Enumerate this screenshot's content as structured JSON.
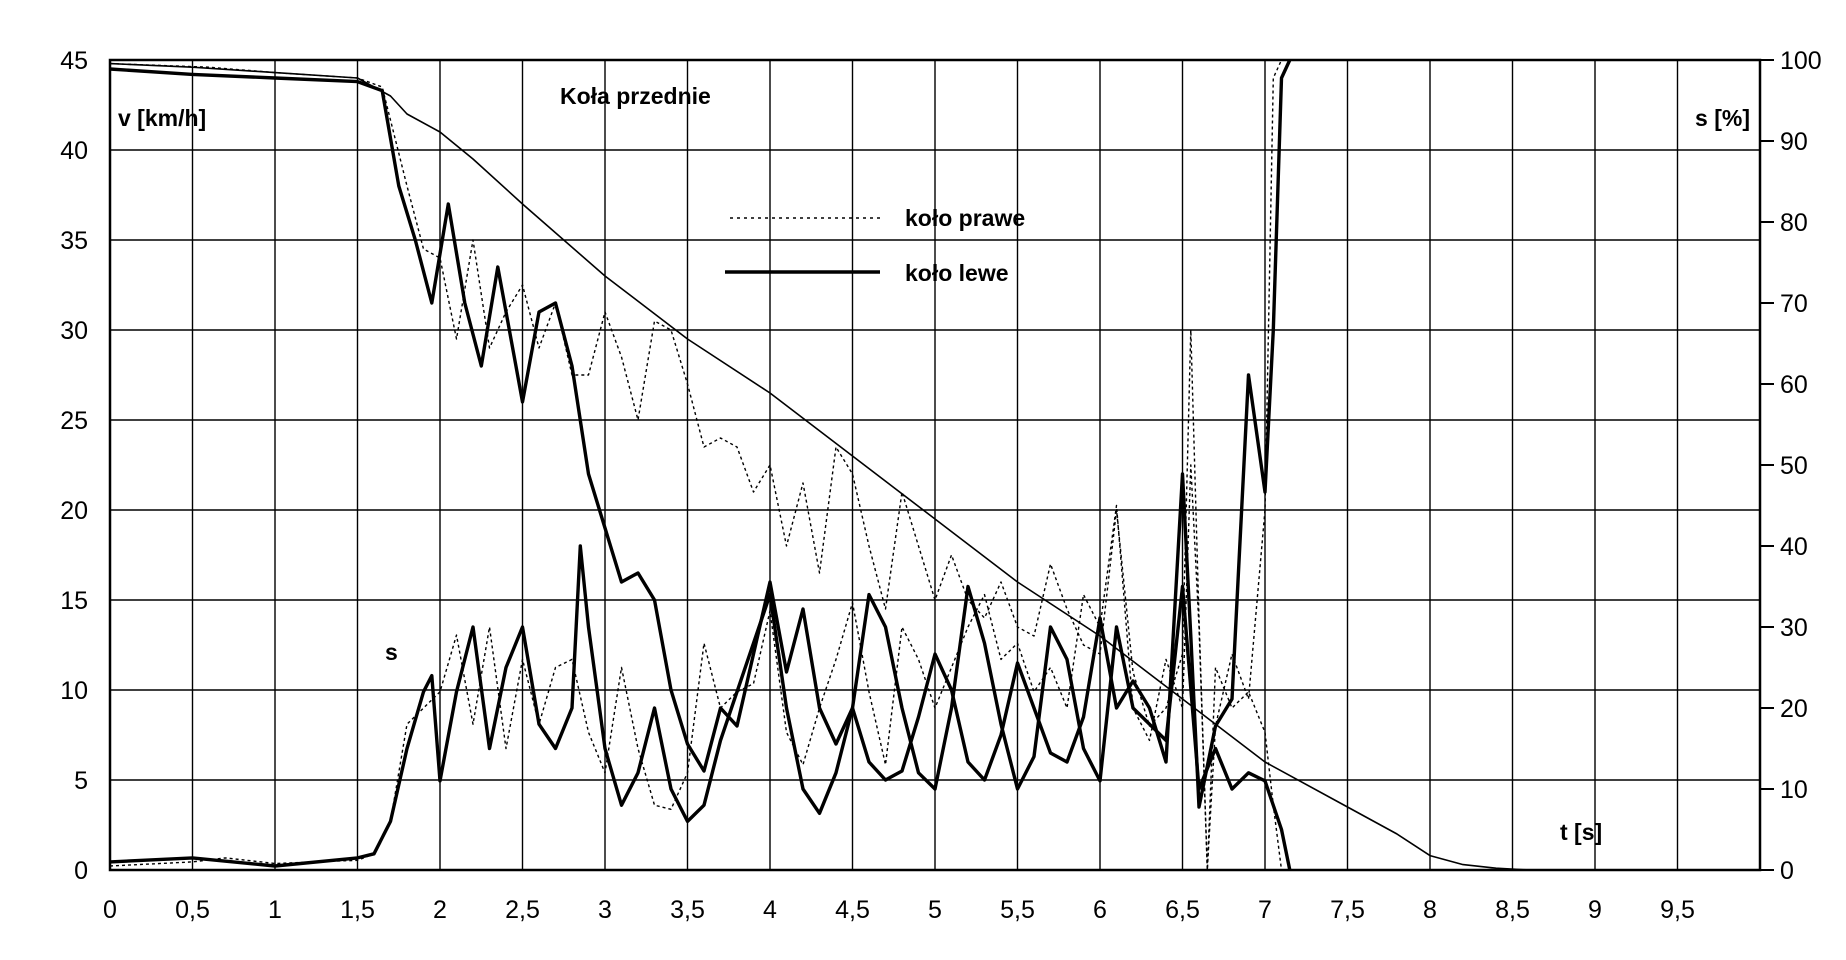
{
  "chart_data": {
    "type": "line",
    "title": "Koła przednie",
    "xlabel": "t [s]",
    "ylabel_left": "v [km/h]",
    "ylabel_right": "s [%]",
    "series_marker": "s",
    "xlim": [
      0,
      10
    ],
    "ylim_left": [
      0,
      45
    ],
    "ylim_right": [
      0,
      100
    ],
    "x_ticks": [
      "0",
      "0,5",
      "1",
      "1,5",
      "2",
      "2,5",
      "3",
      "3,5",
      "4",
      "4,5",
      "5",
      "5,5",
      "6",
      "6,5",
      "7",
      "7,5",
      "8",
      "8,5",
      "9",
      "9,5"
    ],
    "x_tick_values": [
      0,
      0.5,
      1,
      1.5,
      2,
      2.5,
      3,
      3.5,
      4,
      4.5,
      5,
      5.5,
      6,
      6.5,
      7,
      7.5,
      8,
      8.5,
      9,
      9.5
    ],
    "y_left_ticks": [
      "0",
      "5",
      "10",
      "15",
      "20",
      "25",
      "30",
      "35",
      "40",
      "45"
    ],
    "y_left_tick_values": [
      0,
      5,
      10,
      15,
      20,
      25,
      30,
      35,
      40,
      45
    ],
    "y_right_ticks": [
      "0",
      "10",
      "20",
      "30",
      "40",
      "50",
      "60",
      "70",
      "80",
      "90",
      "100"
    ],
    "y_right_tick_values": [
      0,
      10,
      20,
      30,
      40,
      50,
      60,
      70,
      80,
      90,
      100
    ],
    "grid": true,
    "legend_position": "top-center",
    "series": [
      {
        "name": "koło prawe",
        "axis": "left",
        "style": "dotted",
        "x": [
          0,
          0.6,
          1.0,
          1.5,
          1.65,
          1.8,
          1.9,
          2.0,
          2.1,
          2.2,
          2.3,
          2.4,
          2.5,
          2.6,
          2.7,
          2.8,
          2.9,
          3.0,
          3.1,
          3.2,
          3.3,
          3.4,
          3.5,
          3.6,
          3.7,
          3.8,
          3.9,
          4.0,
          4.1,
          4.2,
          4.3,
          4.4,
          4.5,
          4.6,
          4.7,
          4.8,
          4.9,
          5.0,
          5.1,
          5.2,
          5.3,
          5.4,
          5.5,
          5.6,
          5.7,
          5.8,
          5.9,
          6.0,
          6.1,
          6.2,
          6.3,
          6.4,
          6.5,
          6.55,
          6.6,
          6.65,
          6.7,
          6.8,
          6.9,
          7.0,
          7.05,
          7.1
        ],
        "y": [
          44.8,
          44.6,
          44.3,
          44.0,
          43.5,
          38.0,
          34.5,
          34.0,
          29.5,
          35.0,
          29.0,
          31.0,
          32.5,
          29.0,
          31.5,
          27.5,
          27.5,
          31.0,
          28.5,
          25.0,
          30.5,
          30.0,
          27.0,
          23.5,
          24.0,
          23.5,
          21.0,
          22.5,
          18.0,
          21.5,
          16.5,
          23.5,
          22.0,
          18.0,
          14.5,
          21.0,
          18.0,
          15.0,
          17.5,
          15.0,
          14.0,
          16.0,
          13.5,
          13.0,
          17.0,
          14.5,
          12.5,
          12.0,
          20.0,
          11.0,
          8.0,
          9.0,
          12.0,
          30.0,
          14.0,
          0.0,
          8.0,
          12.0,
          9.5,
          20.0,
          44.0,
          45.0
        ]
      },
      {
        "name": "koło lewe",
        "axis": "left",
        "style": "solid-thick",
        "x": [
          0,
          0.5,
          1.0,
          1.5,
          1.65,
          1.75,
          1.85,
          1.95,
          2.05,
          2.15,
          2.25,
          2.35,
          2.45,
          2.5,
          2.6,
          2.7,
          2.8,
          2.9,
          3.0,
          3.1,
          3.2,
          3.3,
          3.4,
          3.5,
          3.6,
          3.7,
          3.8,
          3.9,
          4.0,
          4.1,
          4.2,
          4.3,
          4.4,
          4.5,
          4.6,
          4.7,
          4.8,
          4.9,
          5.0,
          5.1,
          5.2,
          5.3,
          5.4,
          5.5,
          5.6,
          5.7,
          5.8,
          5.9,
          6.0,
          6.1,
          6.2,
          6.3,
          6.4,
          6.5,
          6.55,
          6.6,
          6.7,
          6.8,
          6.9,
          7.0,
          7.05,
          7.1,
          7.15
        ],
        "y": [
          44.5,
          44.2,
          44.0,
          43.8,
          43.3,
          38.0,
          35.0,
          31.5,
          37.0,
          31.5,
          28.0,
          33.5,
          28.5,
          26.0,
          31.0,
          31.5,
          28.0,
          22.0,
          19.0,
          16.0,
          16.5,
          15.0,
          10.0,
          7.0,
          5.5,
          9.0,
          8.0,
          12.0,
          16.0,
          11.0,
          14.5,
          9.0,
          7.0,
          9.0,
          6.0,
          5.0,
          5.5,
          8.5,
          12.0,
          10.0,
          6.0,
          5.0,
          7.5,
          11.5,
          9.0,
          6.5,
          6.0,
          8.5,
          14.0,
          9.0,
          10.5,
          9.0,
          6.0,
          22.0,
          13.0,
          3.5,
          8.0,
          9.5,
          27.5,
          21.0,
          30.0,
          44.0,
          45.0
        ]
      },
      {
        "name": "v",
        "axis": "left",
        "style": "solid-thin",
        "x": [
          0,
          0.5,
          1.0,
          1.5,
          1.7,
          1.8,
          2.0,
          2.2,
          2.5,
          3.0,
          3.5,
          4.0,
          4.5,
          5.0,
          5.5,
          6.0,
          6.5,
          7.0,
          7.5,
          7.8,
          8.0,
          8.2,
          8.4,
          8.6
        ],
        "y": [
          44.8,
          44.6,
          44.3,
          44.0,
          43.0,
          42.0,
          41.0,
          39.5,
          37.0,
          33.0,
          29.5,
          26.5,
          23.0,
          19.5,
          16.0,
          13.0,
          9.5,
          6.0,
          3.5,
          2.0,
          0.8,
          0.3,
          0.1,
          0.0
        ]
      },
      {
        "name": "s koło prawe",
        "axis": "right",
        "style": "dotted",
        "x": [
          0,
          0.5,
          0.7,
          1.0,
          1.5,
          1.6,
          1.7,
          1.8,
          1.9,
          2.0,
          2.1,
          2.2,
          2.3,
          2.4,
          2.5,
          2.6,
          2.7,
          2.8,
          2.9,
          3.0,
          3.1,
          3.2,
          3.3,
          3.4,
          3.5,
          3.6,
          3.7,
          3.8,
          3.9,
          4.0,
          4.1,
          4.2,
          4.3,
          4.4,
          4.5,
          4.6,
          4.7,
          4.8,
          4.9,
          5.0,
          5.1,
          5.2,
          5.3,
          5.4,
          5.5,
          5.6,
          5.7,
          5.8,
          5.9,
          6.0,
          6.1,
          6.2,
          6.3,
          6.4,
          6.5,
          6.55,
          6.6,
          6.65,
          6.7,
          6.8,
          6.9,
          7.0,
          7.05,
          7.1
        ],
        "y": [
          0.5,
          1.0,
          1.5,
          0.8,
          1.2,
          2.0,
          6.0,
          18.0,
          20.0,
          22.0,
          29.0,
          18.0,
          30.0,
          15.0,
          26.0,
          18.0,
          25.0,
          26.0,
          17.0,
          12.0,
          25.0,
          15.0,
          8.0,
          7.5,
          12.0,
          28.0,
          20.0,
          22.0,
          23.0,
          32.0,
          17.0,
          13.0,
          20.0,
          26.0,
          33.0,
          22.0,
          13.0,
          30.0,
          26.0,
          20.0,
          25.0,
          30.0,
          34.0,
          26.0,
          28.0,
          22.0,
          25.0,
          20.0,
          34.0,
          30.0,
          45.0,
          20.0,
          16.0,
          26.0,
          20.0,
          50.0,
          30.0,
          0.0,
          25.0,
          20.0,
          22.0,
          17.0,
          8.0,
          0.0
        ]
      },
      {
        "name": "s koło lewe",
        "axis": "right",
        "style": "solid-thick",
        "x": [
          0,
          0.5,
          1.0,
          1.5,
          1.6,
          1.7,
          1.8,
          1.9,
          1.95,
          2.0,
          2.1,
          2.2,
          2.3,
          2.4,
          2.5,
          2.6,
          2.7,
          2.8,
          2.85,
          2.9,
          3.0,
          3.1,
          3.2,
          3.3,
          3.4,
          3.5,
          3.6,
          3.7,
          3.8,
          3.9,
          4.0,
          4.1,
          4.2,
          4.3,
          4.4,
          4.5,
          4.6,
          4.7,
          4.8,
          4.9,
          5.0,
          5.1,
          5.2,
          5.3,
          5.4,
          5.5,
          5.6,
          5.7,
          5.8,
          5.9,
          6.0,
          6.1,
          6.2,
          6.3,
          6.4,
          6.5,
          6.6,
          6.7,
          6.8,
          6.9,
          7.0,
          7.1,
          7.15
        ],
        "y": [
          1.0,
          1.5,
          0.5,
          1.5,
          2.0,
          6.0,
          15.0,
          22.0,
          24.0,
          11.0,
          22.0,
          30.0,
          15.0,
          25.0,
          30.0,
          18.0,
          15.0,
          20.0,
          40.0,
          30.0,
          15.0,
          8.0,
          12.0,
          20.0,
          10.0,
          6.0,
          8.0,
          16.0,
          22.0,
          28.0,
          34.0,
          20.0,
          10.0,
          7.0,
          12.0,
          20.0,
          34.0,
          30.0,
          20.0,
          12.0,
          10.0,
          20.0,
          35.0,
          28.0,
          18.0,
          10.0,
          14.0,
          30.0,
          26.0,
          15.0,
          11.0,
          30.0,
          20.0,
          18.0,
          16.0,
          35.0,
          10.0,
          15.0,
          10.0,
          12.0,
          11.0,
          5.0,
          0.0
        ]
      }
    ]
  }
}
